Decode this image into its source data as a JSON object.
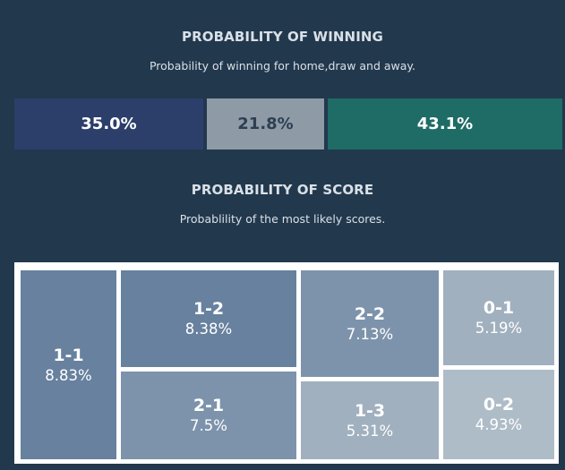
{
  "winning": {
    "title": "PROBABILITY OF WINNING",
    "subtitle": "Probability of winning for home,draw and away.",
    "home": "35.0%",
    "draw": "21.8%",
    "away": "43.1%",
    "colors": {
      "home": "#2c3f6a",
      "draw": "#8e9ba7",
      "away": "#1f6c66"
    }
  },
  "scores": {
    "title": "PROBABILITY OF SCORE",
    "subtitle": "Probablility of the most likely scores.",
    "items": [
      {
        "score": "1-1",
        "probability": "8.83%",
        "color": "#67819e"
      },
      {
        "score": "1-2",
        "probability": "8.38%",
        "color": "#67819e"
      },
      {
        "score": "2-1",
        "probability": "7.5%",
        "color": "#7d93ab"
      },
      {
        "score": "2-2",
        "probability": "7.13%",
        "color": "#7d93ab"
      },
      {
        "score": "1-3",
        "probability": "5.31%",
        "color": "#a1b0bf"
      },
      {
        "score": "0-1",
        "probability": "5.19%",
        "color": "#a1b0bf"
      },
      {
        "score": "0-2",
        "probability": "4.93%",
        "color": "#aebcc8"
      }
    ]
  }
}
